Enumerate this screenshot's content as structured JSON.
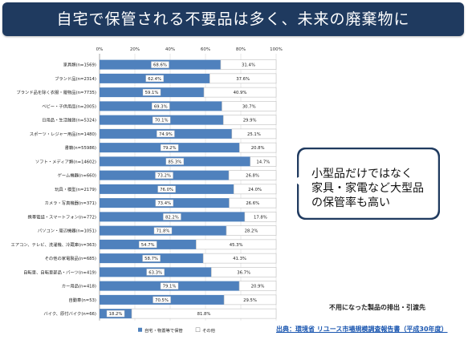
{
  "banner": {
    "title": "自宅で保管される不要品は多く、未来の廃棄物に"
  },
  "callout": {
    "text": "小型品だけではなく\n家具・家電など大型品\nの保管率も高い"
  },
  "source": {
    "title": "不用になった製品の排出・引渡先",
    "text": "出典：環境省 リユース市場規模調査報告書（平成30年度）"
  },
  "colors": {
    "banner": "#1f3a5f",
    "series1": "#4f81bd",
    "series2": "#ffffff"
  },
  "chart_data": {
    "type": "bar",
    "orientation": "horizontal",
    "stacked": true,
    "xlim": [
      0,
      100
    ],
    "xticks": [
      "0%",
      "20%",
      "40%",
      "60%",
      "80%",
      "100%"
    ],
    "grid": true,
    "legend_position": "bottom",
    "categories": [
      "家具類(n=1569)",
      "ブランド品(n=2314)",
      "ブランド品を除く衣服・履物品(n=7735)",
      "ベビー・子供用品(n=2005)",
      "日用品・生活雑貨(n=5324)",
      "スポーツ・レジャー用品(n=1480)",
      "書籍(n=55986)",
      "ソフト・メディア類(n=14602)",
      "ゲーム機器(n=660)",
      "玩具・模型(n=2179)",
      "カメラ・写真機器(n=371)",
      "携帯電話・スマートフォン(n=772)",
      "パソコン・周辺機器(n=1051)",
      "エアコン、テレビ、洗濯機、冷蔵庫(n=363)",
      "その他の家電製品(n=685)",
      "自転車、自転車部品・パーツ(n=419)",
      "カー用品(n=418)",
      "自動車(n=53)",
      "バイク、原付バイク(n=66)"
    ],
    "series": [
      {
        "name": "自宅・物置等で保管",
        "values": [
          68.6,
          62.4,
          59.1,
          69.3,
          70.1,
          74.9,
          79.2,
          85.3,
          73.2,
          76.0,
          73.4,
          82.2,
          71.8,
          54.7,
          58.7,
          63.3,
          79.1,
          70.5,
          18.2
        ],
        "labels": [
          "68.6%",
          "62.4%",
          "59.1%",
          "69.3%",
          "70.1%",
          "74.9%",
          "79.2%",
          "85.3%",
          "73.2%",
          "76.0%",
          "73.4%",
          "82.2%",
          "71.8%",
          "54.7%",
          "58.7%",
          "63.3%",
          "79.1%",
          "70.5%",
          "18.2%"
        ]
      },
      {
        "name": "その他",
        "values": [
          31.4,
          37.6,
          40.9,
          30.7,
          29.9,
          25.1,
          20.8,
          14.7,
          26.8,
          24.0,
          26.6,
          17.8,
          28.2,
          45.3,
          41.3,
          36.7,
          20.9,
          29.5,
          81.8
        ],
        "labels": [
          "31.4%",
          "37.6%",
          "40.9%",
          "30.7%",
          "29.9%",
          "25.1%",
          "20.8%",
          "14.7%",
          "26.8%",
          "24.0%",
          "26.6%",
          "17.8%",
          "28.2%",
          "45.3%",
          "41.3%",
          "36.7%",
          "20.9%",
          "29.5%",
          "81.8%"
        ]
      }
    ]
  }
}
